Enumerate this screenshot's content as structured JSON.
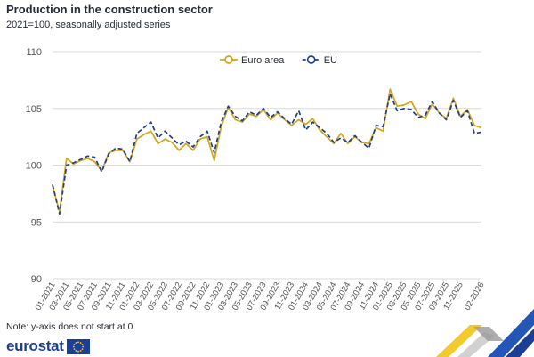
{
  "header": {
    "title": "Production in the construction sector",
    "subtitle": "2021=100, seasonally adjusted series"
  },
  "footer": {
    "note": "Note: y-axis does not start at 0.",
    "logo_text": "eurostat"
  },
  "chart_data": {
    "type": "line",
    "title": "Production in the construction sector",
    "subtitle": "2021=100, seasonally adjusted series",
    "xlabel": "",
    "ylabel": "",
    "ylim": [
      90,
      110
    ],
    "yticks": [
      90,
      95,
      100,
      105,
      110
    ],
    "grid": true,
    "legend_position": "top-center",
    "x": [
      "01-2021",
      "02-2021",
      "03-2021",
      "04-2021",
      "05-2021",
      "06-2021",
      "07-2021",
      "08-2021",
      "09-2021",
      "10-2021",
      "11-2021",
      "12-2021",
      "01-2022",
      "02-2022",
      "03-2022",
      "04-2022",
      "05-2022",
      "06-2022",
      "07-2022",
      "08-2022",
      "09-2022",
      "10-2022",
      "11-2022",
      "12-2022",
      "01-2023",
      "02-2023",
      "03-2023",
      "04-2023",
      "05-2023",
      "06-2023",
      "07-2023",
      "08-2023",
      "09-2023",
      "10-2023",
      "11-2023",
      "12-2023",
      "01-2024",
      "02-2024",
      "03-2024",
      "04-2024",
      "05-2024",
      "06-2024",
      "07-2024",
      "08-2024",
      "09-2024",
      "10-2024",
      "11-2024",
      "12-2024",
      "01-2025",
      "02-2025",
      "03-2025",
      "04-2025",
      "05-2025",
      "06-2025",
      "07-2025",
      "08-2025",
      "09-2025",
      "10-2025",
      "11-2025",
      "12-2025",
      "01-2026",
      "02-2026"
    ],
    "xticks_shown": [
      "01-2021",
      "03-2021",
      "05-2021",
      "07-2021",
      "09-2021",
      "11-2021",
      "01-2022",
      "03-2022",
      "05-2022",
      "07-2022",
      "09-2022",
      "11-2022",
      "01-2023",
      "03-2023",
      "05-2023",
      "07-2023",
      "09-2023",
      "11-2023",
      "01-2024",
      "03-2024",
      "05-2024",
      "07-2024",
      "09-2024",
      "11-2024",
      "01-2025",
      "03-2025",
      "05-2025",
      "07-2025",
      "09-2025",
      "11-2025",
      "02-2026"
    ],
    "series": [
      {
        "name": "Euro area",
        "color": "#d4a517",
        "style": "solid",
        "values": [
          98.2,
          95.9,
          100.6,
          100.1,
          100.4,
          100.6,
          100.3,
          99.5,
          101.1,
          101.3,
          101.3,
          100.3,
          102.3,
          102.7,
          103.0,
          101.9,
          102.3,
          102.0,
          101.3,
          101.9,
          101.3,
          102.3,
          102.5,
          100.4,
          103.4,
          105.1,
          104.0,
          103.8,
          104.5,
          104.3,
          104.9,
          104.0,
          104.6,
          104.0,
          103.5,
          104.0,
          103.6,
          104.1,
          103.1,
          102.5,
          101.9,
          102.8,
          101.9,
          102.5,
          102.0,
          101.9,
          103.3,
          103.0,
          106.7,
          105.2,
          105.3,
          105.6,
          104.5,
          104.1,
          105.4,
          104.6,
          104.1,
          105.9,
          104.3,
          104.9,
          103.5,
          103.3
        ]
      },
      {
        "name": "EU",
        "color": "#1c3f95",
        "style": "dashed",
        "values": [
          98.3,
          95.7,
          100.0,
          100.2,
          100.5,
          100.8,
          100.7,
          99.4,
          101.0,
          101.5,
          101.4,
          100.3,
          102.8,
          103.3,
          103.8,
          102.4,
          103.0,
          102.4,
          101.8,
          102.1,
          101.6,
          102.5,
          103.0,
          101.1,
          103.8,
          105.2,
          104.3,
          103.9,
          104.7,
          104.4,
          105.0,
          104.2,
          104.7,
          104.1,
          103.6,
          104.8,
          103.1,
          103.8,
          103.3,
          102.8,
          102.0,
          102.4,
          102.0,
          102.6,
          102.0,
          101.5,
          103.5,
          103.4,
          106.3,
          104.8,
          105.0,
          104.9,
          104.2,
          104.4,
          105.6,
          104.6,
          104.0,
          105.7,
          104.2,
          104.8,
          102.8,
          102.9
        ]
      }
    ]
  }
}
